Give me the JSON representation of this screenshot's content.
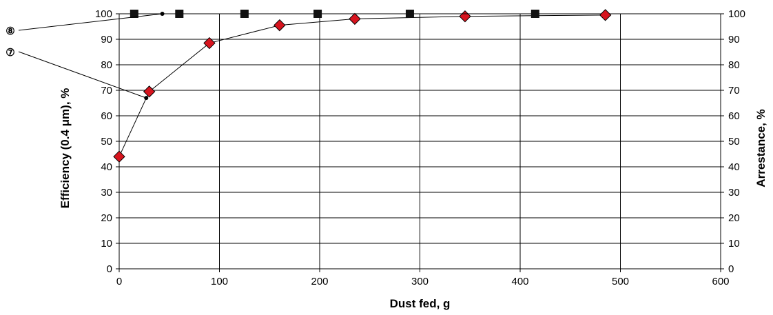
{
  "chart_data": {
    "type": "line",
    "xlabel": "Dust fed, g",
    "ylabel_left": "Efficiency (0.4 μm), %",
    "ylabel_right": "Arrestance, %",
    "xlim": [
      0,
      600
    ],
    "ylim": [
      0,
      100
    ],
    "x_ticks": [
      "0",
      "100",
      "200",
      "300",
      "400",
      "500",
      "600"
    ],
    "y_ticks": [
      "0",
      "10",
      "20",
      "30",
      "40",
      "50",
      "60",
      "70",
      "80",
      "90",
      "100"
    ],
    "grid": true,
    "series": [
      {
        "axis": "left",
        "marker": "diamond",
        "color": "#d7141e",
        "x": [
          0,
          30,
          90,
          160,
          235,
          345,
          485
        ],
        "y": [
          44,
          69.5,
          88.5,
          95.5,
          98,
          99,
          99.5
        ]
      },
      {
        "axis": "right",
        "marker": "square",
        "color": "#111111",
        "x": [
          15,
          60,
          125,
          198,
          290,
          415
        ],
        "y": [
          100,
          100,
          100,
          100,
          100,
          100
        ]
      }
    ],
    "callouts": [
      {
        "label": "⑧",
        "target_x": 43,
        "target_y": 100
      },
      {
        "label": "⑦",
        "target_x": 27,
        "target_y": 67
      }
    ]
  }
}
